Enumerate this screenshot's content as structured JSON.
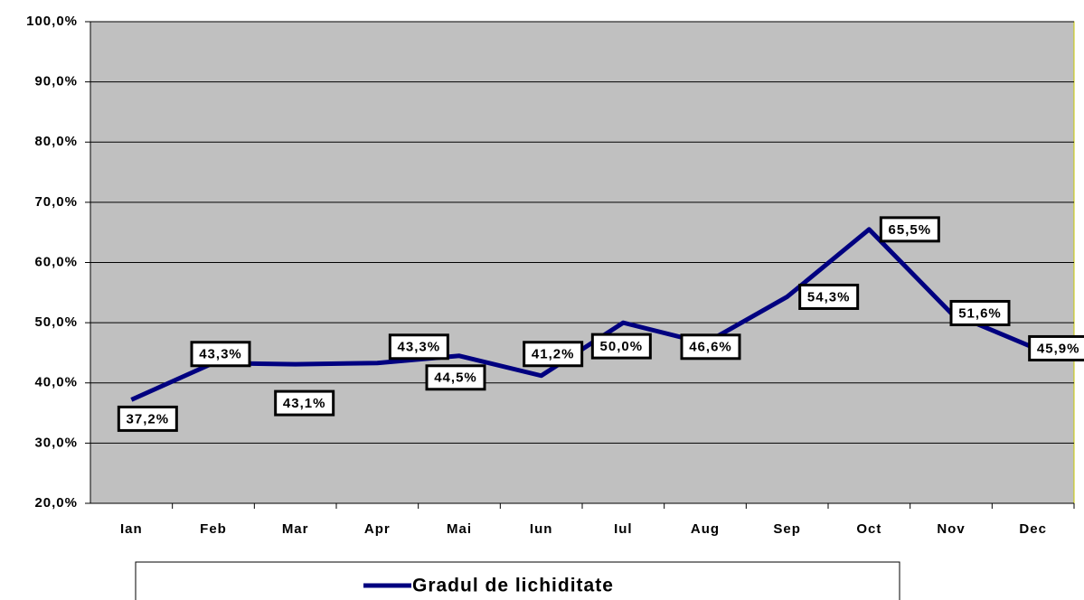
{
  "chart_data": {
    "type": "line",
    "categories": [
      "Ian",
      "Feb",
      "Mar",
      "Apr",
      "Mai",
      "Iun",
      "Iul",
      "Aug",
      "Sep",
      "Oct",
      "Nov",
      "Dec"
    ],
    "series": [
      {
        "name": "Gradul de lichiditate",
        "color": "#000080",
        "values": [
          37.2,
          43.3,
          43.1,
          43.3,
          44.5,
          41.2,
          50.0,
          46.6,
          54.3,
          65.5,
          51.6,
          45.9
        ],
        "value_labels": [
          "37,2%",
          "43,3%",
          "43,1%",
          "43,3%",
          "44,5%",
          "41,2%",
          "50,0%",
          "46,6%",
          "54,3%",
          "65,5%",
          "51,6%",
          "45,9%"
        ]
      }
    ],
    "ylim": [
      20,
      100
    ],
    "yticks": [
      {
        "value": 20,
        "label": "20,0%"
      },
      {
        "value": 30,
        "label": "30,0%"
      },
      {
        "value": 40,
        "label": "40,0%"
      },
      {
        "value": 50,
        "label": "50,0%"
      },
      {
        "value": 60,
        "label": "60,0%"
      },
      {
        "value": 70,
        "label": "70,0%"
      },
      {
        "value": 80,
        "label": "80,0%"
      },
      {
        "value": 90,
        "label": "90,0%"
      },
      {
        "value": 100,
        "label": "100,0%"
      }
    ],
    "grid": true,
    "legend": "bottom"
  }
}
